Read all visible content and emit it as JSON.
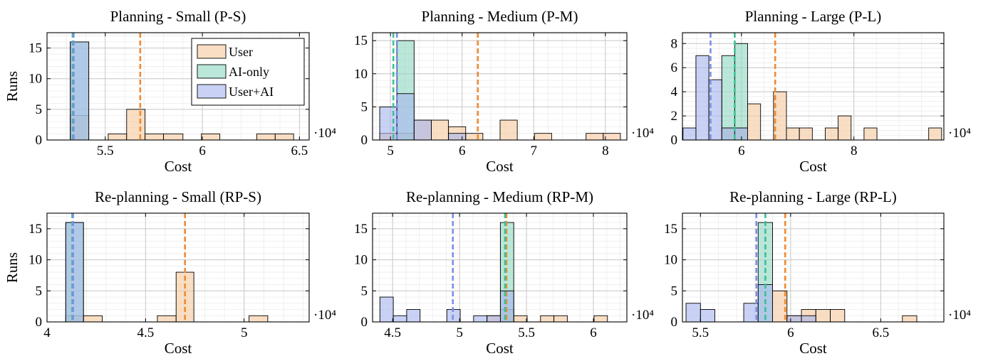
{
  "chart_data": [
    {
      "type": "bar",
      "title": "Planning - Small (P-S)",
      "xlabel": "Cost",
      "ylabel": "Runs",
      "x_multiplier": "·10⁴",
      "xlim": [
        5.2,
        6.55
      ],
      "ylim": [
        0,
        17.5
      ],
      "xticks": [
        5.5,
        6,
        6.5
      ],
      "xtick_labels": [
        "5.5",
        "6",
        "6.5"
      ],
      "yticks": [
        0,
        5,
        10,
        15
      ],
      "ytick_labels": [
        "0",
        "5",
        "10",
        "15"
      ],
      "grid": true,
      "legend": {
        "placement": "top-right",
        "entries": [
          "User",
          "AI-only",
          "User+AI"
        ]
      },
      "series": [
        {
          "name": "User",
          "color": "#f6c9a0",
          "edges": [
            5.32,
            5.415,
            5.515,
            5.61,
            5.705,
            5.8,
            5.9,
            5.995,
            6.09,
            6.185,
            6.28,
            6.375,
            6.47
          ],
          "counts": [
            4,
            0,
            1,
            5,
            1,
            1,
            0,
            1,
            0,
            0,
            1,
            1
          ]
        },
        {
          "name": "AI-only",
          "color": "#8fd9c2",
          "edges": [
            5.32,
            5.415
          ],
          "counts": [
            16
          ]
        },
        {
          "name": "User+AI",
          "color": "#a8b6ee",
          "edges": [
            5.32,
            5.415
          ],
          "counts": [
            16
          ]
        }
      ],
      "mean_lines": [
        {
          "series": "User",
          "x": 5.68,
          "color": "#f08a2e"
        },
        {
          "series": "AI-only",
          "x": 5.332,
          "color": "#3cbf96"
        },
        {
          "series": "User+AI",
          "x": 5.337,
          "color": "#7a8fe8"
        }
      ]
    },
    {
      "type": "bar",
      "title": "Planning - Medium (P-M)",
      "xlabel": "Cost",
      "ylabel": "",
      "x_multiplier": "·10⁴",
      "xlim": [
        4.75,
        8.3
      ],
      "ylim": [
        0,
        16.2
      ],
      "xticks": [
        5,
        6,
        7,
        8
      ],
      "xtick_labels": [
        "5",
        "6",
        "7",
        "8"
      ],
      "yticks": [
        0,
        5,
        10,
        15
      ],
      "ytick_labels": [
        "0",
        "5",
        "10",
        "15"
      ],
      "grid": true,
      "series": [
        {
          "name": "User",
          "color": "#f6c9a0",
          "edges": [
            4.85,
            5.09,
            5.33,
            5.57,
            5.81,
            6.05,
            6.29,
            6.53,
            6.77,
            7.01,
            7.25,
            7.49,
            7.73,
            7.97,
            8.21
          ],
          "counts": [
            1,
            1,
            3,
            3,
            2,
            1,
            0,
            3,
            0,
            1,
            0,
            0,
            1,
            1
          ]
        },
        {
          "name": "AI-only",
          "color": "#8fd9c2",
          "edges": [
            4.85,
            5.09,
            5.33
          ],
          "counts": [
            0,
            15
          ]
        },
        {
          "name": "User+AI",
          "color": "#a8b6ee",
          "edges": [
            4.85,
            5.09,
            5.33,
            5.57,
            5.81,
            6.05
          ],
          "counts": [
            5,
            7,
            3,
            0,
            1
          ]
        }
      ],
      "mean_lines": [
        {
          "series": "User",
          "x": 6.22,
          "color": "#f08a2e"
        },
        {
          "series": "AI-only",
          "x": 5.04,
          "color": "#3cbf96"
        },
        {
          "series": "User+AI",
          "x": 5.09,
          "color": "#7a8fe8"
        }
      ]
    },
    {
      "type": "bar",
      "title": "Planning - Large (P-L)",
      "xlabel": "Cost",
      "ylabel": "",
      "x_multiplier": "·10⁴",
      "xlim": [
        4.95,
        9.6
      ],
      "ylim": [
        0,
        8.9
      ],
      "xticks": [
        6,
        8
      ],
      "xtick_labels": [
        "6",
        "8"
      ],
      "yticks": [
        0,
        2,
        4,
        6,
        8
      ],
      "ytick_labels": [
        "0",
        "2",
        "4",
        "6",
        "8"
      ],
      "grid": true,
      "series": [
        {
          "name": "User",
          "color": "#f6c9a0",
          "edges": [
            5.65,
            5.88,
            6.11,
            6.34,
            6.57,
            6.8,
            7.03,
            7.26,
            7.49,
            7.72,
            7.95,
            8.18,
            8.41,
            8.64,
            8.87,
            9.1,
            9.33,
            9.56
          ],
          "counts": [
            1,
            1,
            3,
            0,
            4,
            1,
            1,
            0,
            1,
            2,
            0,
            1,
            0,
            0,
            0,
            0,
            1
          ]
        },
        {
          "name": "AI-only",
          "color": "#8fd9c2",
          "edges": [
            5.65,
            5.88,
            6.11
          ],
          "counts": [
            7,
            8
          ]
        },
        {
          "name": "User+AI",
          "color": "#a8b6ee",
          "edges": [
            4.96,
            5.19,
            5.42,
            5.65,
            5.88,
            6.11
          ],
          "counts": [
            1,
            7,
            5,
            1,
            1
          ]
        }
      ],
      "mean_lines": [
        {
          "series": "User",
          "x": 6.6,
          "color": "#f08a2e"
        },
        {
          "series": "AI-only",
          "x": 5.88,
          "color": "#3cbf96"
        },
        {
          "series": "User+AI",
          "x": 5.45,
          "color": "#7a8fe8"
        }
      ]
    },
    {
      "type": "bar",
      "title": "Re-planning - Small (RP-S)",
      "xlabel": "Cost",
      "ylabel": "Runs",
      "x_multiplier": "·10⁴",
      "xlim": [
        4.0,
        5.33
      ],
      "ylim": [
        0,
        17.5
      ],
      "xticks": [
        4,
        4.5,
        5
      ],
      "xtick_labels": [
        "4",
        "4.5",
        "5"
      ],
      "yticks": [
        0,
        5,
        10,
        15
      ],
      "ytick_labels": [
        "0",
        "5",
        "10",
        "15"
      ],
      "grid": true,
      "series": [
        {
          "name": "User",
          "color": "#f6c9a0",
          "edges": [
            4.095,
            4.185,
            4.28,
            4.37,
            4.465,
            4.56,
            4.655,
            4.745,
            4.84,
            4.935,
            5.025,
            5.12
          ],
          "counts": [
            1,
            1,
            0,
            0,
            0,
            1,
            8,
            0,
            0,
            0,
            1
          ]
        },
        {
          "name": "AI-only",
          "color": "#8fd9c2",
          "edges": [
            4.095,
            4.185
          ],
          "counts": [
            16
          ]
        },
        {
          "name": "User+AI",
          "color": "#a8b6ee",
          "edges": [
            4.095,
            4.185
          ],
          "counts": [
            16
          ]
        }
      ],
      "mean_lines": [
        {
          "series": "User",
          "x": 4.7,
          "color": "#f08a2e"
        },
        {
          "series": "AI-only",
          "x": 4.128,
          "color": "#3cbf96"
        },
        {
          "series": "User+AI",
          "x": 4.132,
          "color": "#7a8fe8"
        }
      ]
    },
    {
      "type": "bar",
      "title": "Re-planning - Medium (RP-M)",
      "xlabel": "Cost",
      "ylabel": "",
      "x_multiplier": "·10⁴",
      "xlim": [
        4.35,
        6.25
      ],
      "ylim": [
        0,
        17.5
      ],
      "xticks": [
        4.5,
        5,
        5.5,
        6
      ],
      "xtick_labels": [
        "4.5",
        "5",
        "5.5",
        "6"
      ],
      "yticks": [
        0,
        5,
        10,
        15
      ],
      "ytick_labels": [
        "0",
        "5",
        "10",
        "15"
      ],
      "grid": true,
      "series": [
        {
          "name": "User",
          "color": "#f6c9a0",
          "edges": [
            5.205,
            5.305,
            5.405,
            5.505,
            5.605,
            5.705,
            5.805,
            5.905,
            6.005,
            6.105
          ],
          "counts": [
            1,
            2,
            1,
            0,
            1,
            1,
            0,
            0,
            1
          ]
        },
        {
          "name": "AI-only",
          "color": "#8fd9c2",
          "edges": [
            5.305,
            5.405
          ],
          "counts": [
            16
          ]
        },
        {
          "name": "User+AI",
          "color": "#a8b6ee",
          "edges": [
            4.405,
            4.505,
            4.605,
            4.705,
            4.805,
            4.905,
            5.005,
            5.105,
            5.205,
            5.305,
            5.405
          ],
          "counts": [
            4,
            1,
            2,
            0,
            0,
            2,
            0,
            1,
            1,
            5
          ]
        }
      ],
      "mean_lines": [
        {
          "series": "User",
          "x": 5.35,
          "color": "#f08a2e"
        },
        {
          "series": "AI-only",
          "x": 5.34,
          "color": "#3cbf96"
        },
        {
          "series": "User+AI",
          "x": 4.95,
          "color": "#7a8fe8"
        }
      ]
    },
    {
      "type": "bar",
      "title": "Re-planning - Large (RP-L)",
      "xlabel": "Cost",
      "ylabel": "",
      "x_multiplier": "·10⁴",
      "xlim": [
        5.4,
        6.85
      ],
      "ylim": [
        0,
        17.5
      ],
      "xticks": [
        5.5,
        6,
        6.5
      ],
      "xtick_labels": [
        "5.5",
        "6",
        "6.5"
      ],
      "yticks": [
        0,
        5,
        10,
        15
      ],
      "ytick_labels": [
        "0",
        "5",
        "10",
        "15"
      ],
      "grid": true,
      "series": [
        {
          "name": "User",
          "color": "#f6c9a0",
          "edges": [
            5.9,
            5.98,
            6.06,
            6.14,
            6.22,
            6.3,
            6.38,
            6.46,
            6.54,
            6.62,
            6.7
          ],
          "counts": [
            5,
            1,
            2,
            2,
            2,
            0,
            0,
            0,
            0,
            1
          ]
        },
        {
          "name": "AI-only",
          "color": "#8fd9c2",
          "edges": [
            5.82,
            5.9
          ],
          "counts": [
            16
          ]
        },
        {
          "name": "User+AI",
          "color": "#a8b6ee",
          "edges": [
            5.42,
            5.5,
            5.58,
            5.66,
            5.74,
            5.82,
            5.9,
            5.98,
            6.06,
            6.14
          ],
          "counts": [
            3,
            2,
            0,
            0,
            3,
            6,
            0,
            1,
            1
          ]
        }
      ],
      "mean_lines": [
        {
          "series": "User",
          "x": 5.97,
          "color": "#f08a2e"
        },
        {
          "series": "AI-only",
          "x": 5.86,
          "color": "#3cbf96"
        },
        {
          "series": "User+AI",
          "x": 5.81,
          "color": "#7a8fe8"
        }
      ]
    }
  ]
}
